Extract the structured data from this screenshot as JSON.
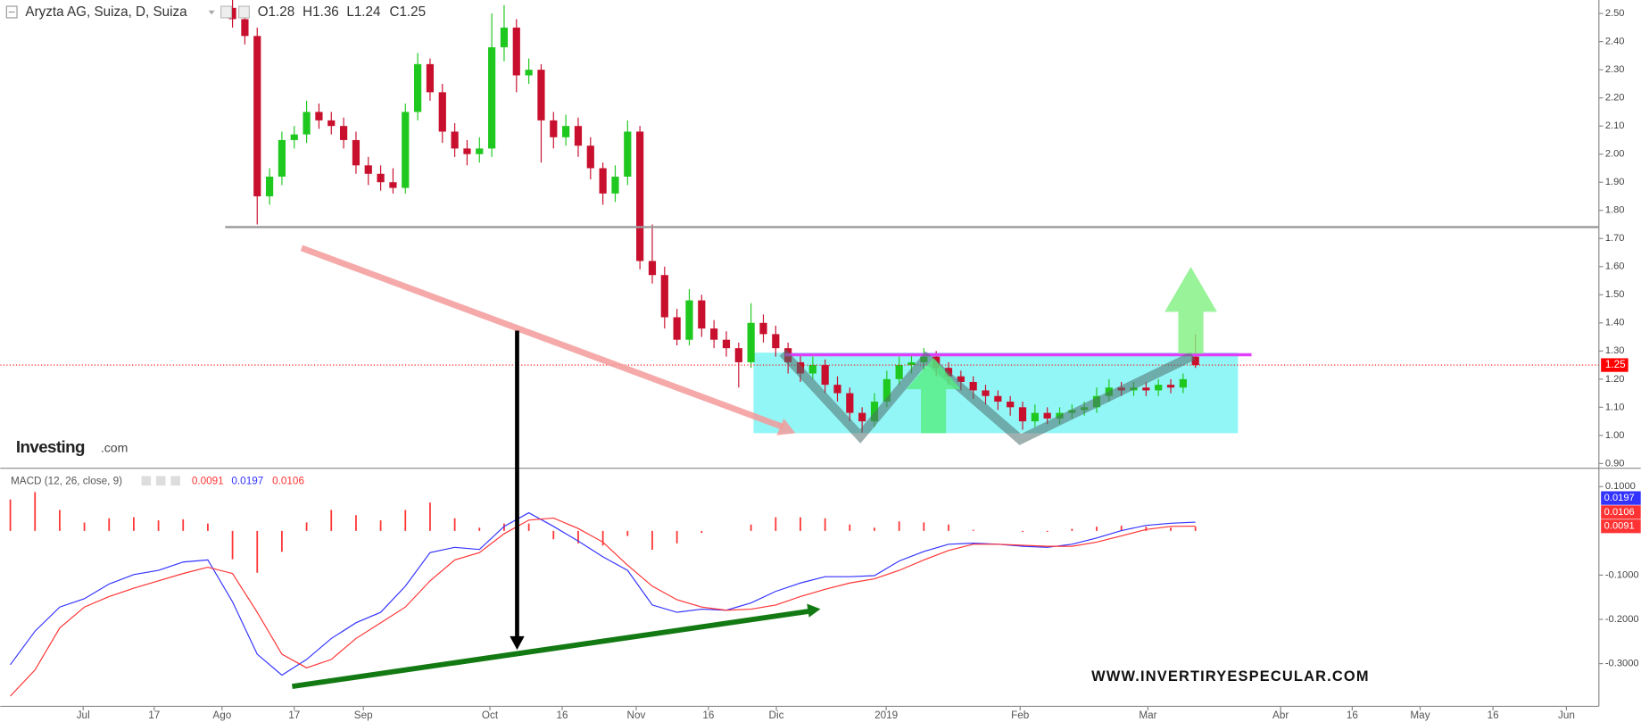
{
  "chart_data": [
    {
      "type": "candlestick",
      "title": "Aryzta AG, Suiza, D, Suiza",
      "ohlc_header": [
        "O1.28",
        "H1.36",
        "L1.24",
        "C1.25"
      ],
      "logo": "Investing",
      "logo_suffix": ".com",
      "watermark": "WWW.INVERTIRYESPECULAR.COM",
      "up_color": "#1fc81f",
      "down_color": "#c8102e",
      "last_price_color": "#ff0000",
      "xlim": [
        -37.63,
        221.36
      ],
      "x": [
        0,
        2,
        4,
        6,
        8,
        10,
        12,
        14,
        16,
        18,
        20,
        22,
        24,
        26,
        28,
        30,
        32,
        34,
        36,
        38,
        40,
        42,
        44,
        46,
        48,
        50,
        52,
        54,
        56,
        58,
        60,
        62,
        64,
        66,
        68,
        70,
        72,
        74,
        76,
        78,
        80,
        82,
        84,
        86,
        88,
        90,
        92,
        94,
        96,
        98,
        100,
        102,
        104,
        106,
        108,
        110,
        112,
        114,
        116,
        118,
        120,
        122,
        124,
        126,
        128,
        130,
        132,
        134,
        136,
        138,
        140,
        142,
        144,
        146,
        148,
        150,
        152,
        154,
        156
      ],
      "open": [
        2.52,
        2.48,
        2.42,
        1.85,
        1.92,
        2.05,
        2.07,
        2.15,
        2.12,
        2.1,
        2.05,
        1.96,
        1.93,
        1.9,
        1.88,
        2.15,
        2.32,
        2.22,
        2.08,
        2.02,
        2.0,
        2.02,
        2.38,
        2.45,
        2.28,
        2.3,
        2.12,
        2.06,
        2.1,
        2.03,
        1.95,
        1.86,
        1.92,
        2.08,
        1.62,
        1.57,
        1.42,
        1.34,
        1.48,
        1.38,
        1.34,
        1.31,
        1.26,
        1.4,
        1.36,
        1.31,
        1.26,
        1.22,
        1.25,
        1.18,
        1.15,
        1.08,
        1.05,
        1.12,
        1.2,
        1.25,
        1.26,
        1.28,
        1.24,
        1.21,
        1.19,
        1.16,
        1.14,
        1.12,
        1.1,
        1.05,
        1.08,
        1.06,
        1.08,
        1.09,
        1.1,
        1.14,
        1.17,
        1.16,
        1.17,
        1.16,
        1.18,
        1.17,
        1.28
      ],
      "high": [
        2.55,
        2.51,
        2.45,
        1.95,
        2.08,
        2.1,
        2.19,
        2.18,
        2.15,
        2.13,
        2.08,
        1.99,
        1.96,
        1.95,
        2.18,
        2.36,
        2.34,
        2.25,
        2.11,
        2.05,
        2.06,
        2.5,
        2.53,
        2.48,
        2.34,
        2.32,
        2.15,
        2.14,
        2.13,
        2.06,
        1.97,
        1.96,
        2.12,
        2.1,
        1.75,
        1.6,
        1.45,
        1.52,
        1.5,
        1.41,
        1.37,
        1.33,
        1.47,
        1.43,
        1.39,
        1.33,
        1.29,
        1.28,
        1.27,
        1.21,
        1.17,
        1.1,
        1.15,
        1.23,
        1.28,
        1.29,
        1.31,
        1.3,
        1.26,
        1.23,
        1.21,
        1.18,
        1.16,
        1.14,
        1.12,
        1.11,
        1.1,
        1.1,
        1.11,
        1.12,
        1.17,
        1.2,
        1.19,
        1.19,
        1.19,
        1.2,
        1.2,
        1.22,
        1.36
      ],
      "low": [
        2.45,
        2.39,
        1.75,
        1.82,
        1.89,
        2.02,
        2.04,
        2.09,
        2.07,
        2.02,
        1.93,
        1.89,
        1.87,
        1.86,
        1.86,
        2.12,
        2.19,
        2.04,
        1.99,
        1.96,
        1.97,
        1.99,
        2.33,
        2.22,
        2.25,
        1.97,
        2.02,
        2.03,
        1.99,
        1.91,
        1.82,
        1.83,
        1.89,
        1.59,
        1.54,
        1.38,
        1.32,
        1.32,
        1.35,
        1.31,
        1.28,
        1.17,
        1.24,
        1.33,
        1.28,
        1.22,
        1.19,
        1.2,
        1.15,
        1.12,
        1.05,
        1.01,
        1.03,
        1.1,
        1.18,
        1.22,
        1.23,
        1.21,
        1.18,
        1.16,
        1.13,
        1.11,
        1.09,
        1.07,
        1.02,
        1.03,
        1.04,
        1.04,
        1.06,
        1.07,
        1.08,
        1.12,
        1.14,
        1.14,
        1.14,
        1.14,
        1.15,
        1.15,
        1.24
      ],
      "close": [
        2.48,
        2.42,
        1.85,
        1.92,
        2.05,
        2.07,
        2.15,
        2.12,
        2.1,
        2.05,
        1.96,
        1.93,
        1.9,
        1.88,
        2.15,
        2.32,
        2.22,
        2.08,
        2.02,
        2.0,
        2.02,
        2.38,
        2.45,
        2.28,
        2.3,
        2.12,
        2.06,
        2.1,
        2.03,
        1.95,
        1.86,
        1.92,
        2.08,
        1.62,
        1.57,
        1.42,
        1.34,
        1.48,
        1.38,
        1.34,
        1.31,
        1.26,
        1.4,
        1.36,
        1.31,
        1.26,
        1.22,
        1.25,
        1.18,
        1.15,
        1.08,
        1.05,
        1.12,
        1.2,
        1.25,
        1.26,
        1.28,
        1.24,
        1.21,
        1.19,
        1.16,
        1.14,
        1.12,
        1.1,
        1.05,
        1.08,
        1.06,
        1.08,
        1.09,
        1.1,
        1.14,
        1.17,
        1.16,
        1.17,
        1.16,
        1.18,
        1.17,
        1.2,
        1.25
      ],
      "ylim": [
        0.885,
        2.548
      ],
      "yticks": [
        {
          "value": 0.9,
          "label": "0.90"
        },
        {
          "value": 1,
          "label": "1.00"
        },
        {
          "value": 1.1,
          "label": "1.10"
        },
        {
          "value": 1.2,
          "label": "1.20"
        },
        {
          "value": 1.3,
          "label": "1.30"
        },
        {
          "value": 1.4,
          "label": "1.40"
        },
        {
          "value": 1.5,
          "label": "1.50"
        },
        {
          "value": 1.6,
          "label": "1.60"
        },
        {
          "value": 1.7,
          "label": "1.70"
        },
        {
          "value": 1.8,
          "label": "1.80"
        },
        {
          "value": 1.9,
          "label": "1.90"
        },
        {
          "value": 2,
          "label": "2.00"
        },
        {
          "value": 2.1,
          "label": "2.10"
        },
        {
          "value": 2.2,
          "label": "2.20"
        },
        {
          "value": 2.3,
          "label": "2.30"
        },
        {
          "value": 2.4,
          "label": "2.40"
        },
        {
          "value": 2.5,
          "label": "2.50"
        }
      ]
    },
    {
      "type": "macd",
      "title": "MACD (12, 26, close, 9)",
      "xlim": [
        -37.63,
        221.36
      ],
      "x": [
        -36,
        -32,
        -28,
        -24,
        -20,
        -16,
        -12,
        -8,
        -4,
        0,
        4,
        8,
        12,
        16,
        20,
        24,
        28,
        32,
        36,
        40,
        44,
        48,
        52,
        56,
        60,
        64,
        68,
        72,
        76,
        80,
        84,
        88,
        92,
        96,
        100,
        104,
        108,
        112,
        116,
        120,
        124,
        128,
        132,
        136,
        140,
        144,
        148,
        152,
        156
      ],
      "histogram": {
        "color": "#ff3333",
        "values": [
          0.071,
          0.0876,
          0.0473,
          0.0189,
          0.0284,
          0.0308,
          0.0237,
          0.026,
          0.0165,
          -0.064,
          -0.0947,
          -0.0473,
          0.019,
          0.0473,
          0.0355,
          0.0237,
          0.0473,
          0.0639,
          0.0284,
          0.0071,
          0.0166,
          0.0165,
          -0.0189,
          -0.0284,
          -0.0332,
          -0.0118,
          -0.0426,
          -0.0284,
          -0.0047,
          0,
          0.0142,
          0.0308,
          0.0307,
          0.0284,
          0.0142,
          0.0071,
          0.0212,
          0.019,
          0.0142,
          0.0024,
          0,
          -0.0024,
          -0.0024,
          0.0047,
          0.0094,
          0.0118,
          0.0094,
          0.0071,
          0.0091
        ]
      },
      "series": [
        {
          "color": "#3333ff",
          "values": [
            -0.3024,
            -0.2266,
            -0.1722,
            -0.1533,
            -0.1201,
            -0.0988,
            -0.0893,
            -0.0704,
            -0.0657,
            -0.1604,
            -0.2787,
            -0.326,
            -0.2905,
            -0.2432,
            -0.2077,
            -0.184,
            -0.1249,
            -0.0491,
            -0.0373,
            -0.042,
            0.0101,
            0.0408,
            0.0101,
            -0.0231,
            -0.0586,
            -0.0893,
            -0.1675,
            -0.184,
            -0.1769,
            -0.1793,
            -0.1627,
            -0.1367,
            -0.1178,
            -0.1036,
            -0.1036,
            -0.1012,
            -0.0681,
            -0.0467,
            -0.0302,
            -0.0278,
            -0.0302,
            -0.0349,
            -0.0373,
            -0.0302,
            -0.016,
            0.0006,
            0.0124,
            0.0172,
            0.0197
          ]
        },
        {
          "color": "#ff3333",
          "values": [
            -0.3734,
            -0.3142,
            -0.2195,
            -0.1722,
            -0.1485,
            -0.1296,
            -0.113,
            -0.0964,
            -0.0822,
            -0.0964,
            -0.184,
            -0.2787,
            -0.3095,
            -0.2905,
            -0.2432,
            -0.2077,
            -0.1722,
            -0.113,
            -0.0657,
            -0.0491,
            -0.0065,
            0.0243,
            0.029,
            0.0053,
            -0.0254,
            -0.0775,
            -0.1249,
            -0.1556,
            -0.1722,
            -0.1793,
            -0.1769,
            -0.1675,
            -0.1485,
            -0.132,
            -0.1178,
            -0.1083,
            -0.0893,
            -0.0657,
            -0.0444,
            -0.0302,
            -0.0302,
            -0.0325,
            -0.0349,
            -0.0349,
            -0.0254,
            -0.0112,
            0.003,
            0.0101,
            0.0106
          ]
        }
      ],
      "ylim": [
        -0.3964,
        0.1379
      ],
      "yticks": [
        {
          "value": 0.1,
          "label": "0.1000"
        },
        {
          "value": -0.1,
          "label": "-0.1000"
        },
        {
          "value": -0.2,
          "label": "-0.2000"
        },
        {
          "value": -0.3,
          "label": "-0.3000"
        }
      ],
      "xticks": [
        {
          "value": -24.2,
          "label": "Jul"
        },
        {
          "value": -12.7,
          "label": "17"
        },
        {
          "value": -1.7,
          "label": "Ago"
        },
        {
          "value": 10,
          "label": "17"
        },
        {
          "value": 21.2,
          "label": "Sep"
        },
        {
          "value": 41.7,
          "label": "Oct"
        },
        {
          "value": 53.4,
          "label": "16"
        },
        {
          "value": 65.4,
          "label": "Nov"
        },
        {
          "value": 77.1,
          "label": "16"
        },
        {
          "value": 88.1,
          "label": "Dic"
        },
        {
          "value": 105.9,
          "label": "2019"
        },
        {
          "value": 127.6,
          "label": "Feb"
        },
        {
          "value": 148.3,
          "label": "Mar"
        },
        {
          "value": 169.8,
          "label": "Abr"
        },
        {
          "value": 181.4,
          "label": "16"
        },
        {
          "value": 192.4,
          "label": "May"
        },
        {
          "value": 204.2,
          "label": "16"
        },
        {
          "value": 216.1,
          "label": "Jun"
        }
      ]
    }
  ]
}
